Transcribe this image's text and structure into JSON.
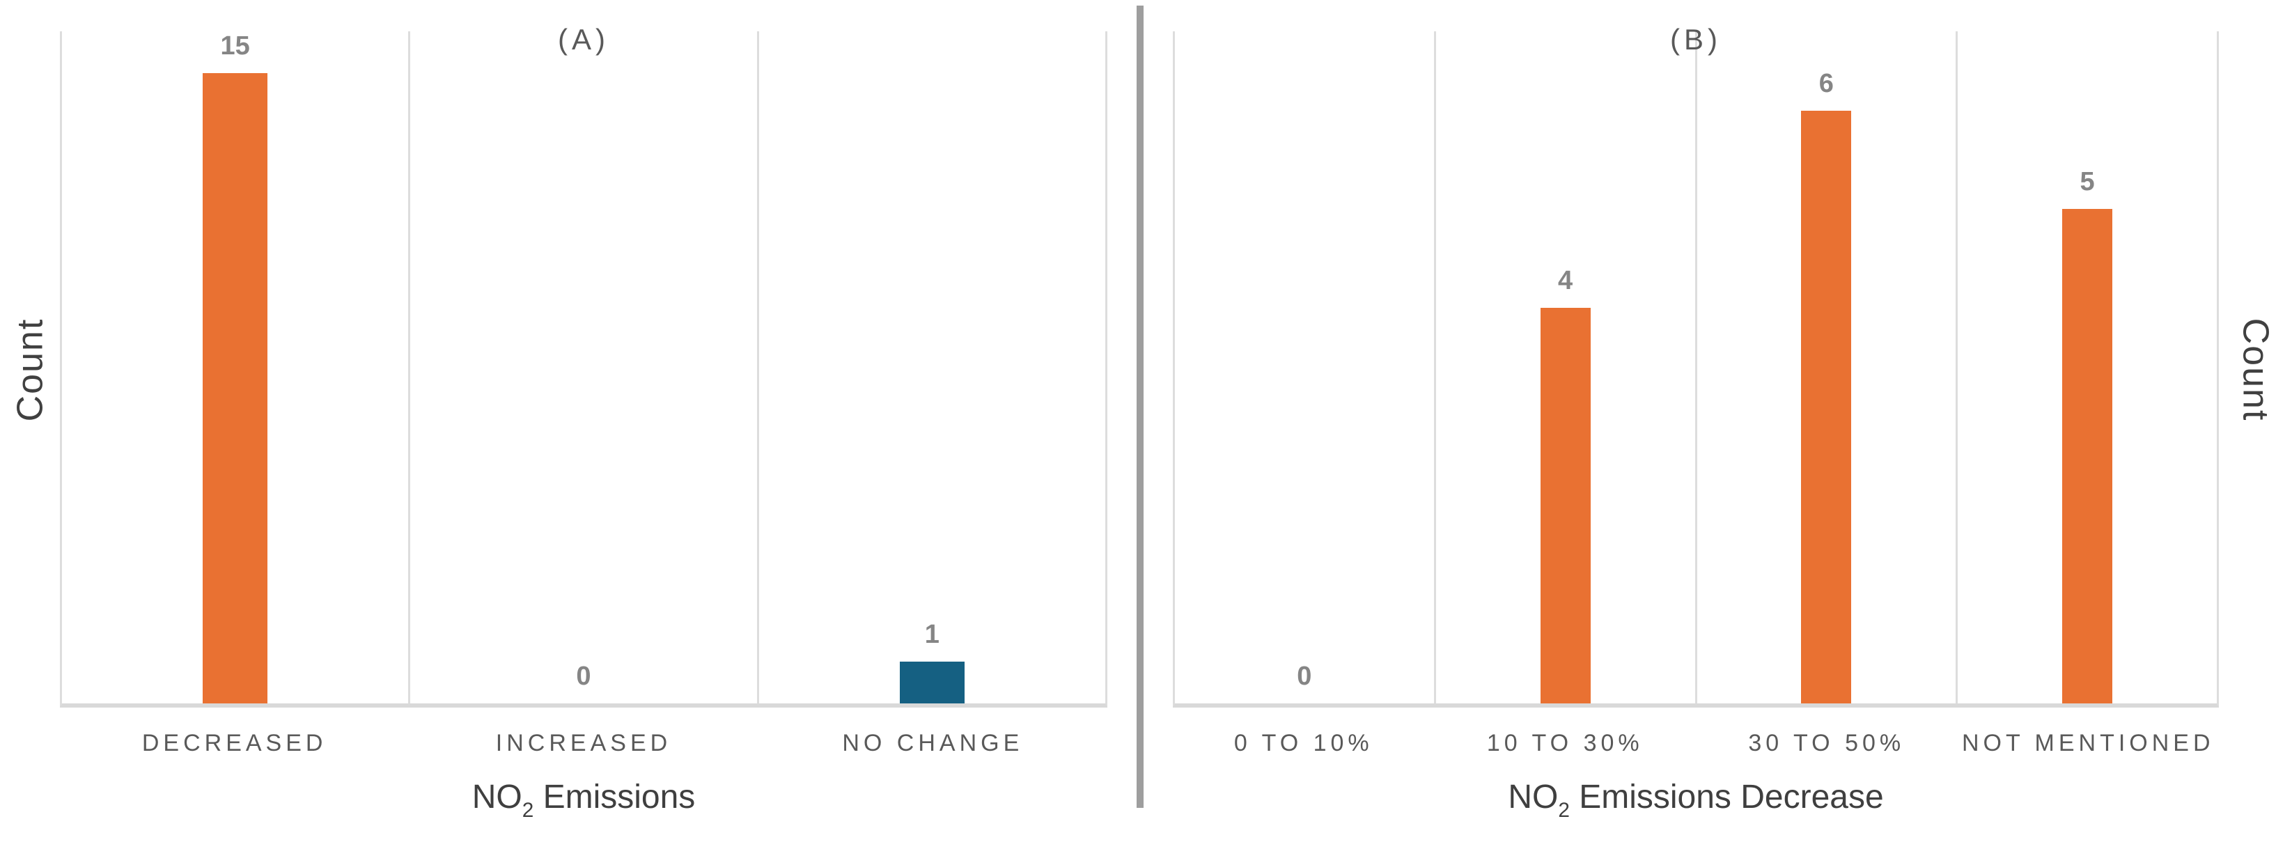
{
  "figure": {
    "background": "#FFFFFF"
  },
  "colors": {
    "orange": "#E97132",
    "teal": "#156082",
    "cell_line": "#DDDDDD",
    "baseline": "#D9D9D9",
    "divider": "#9E9E9E",
    "value_label": "#858585",
    "category_label": "#595959",
    "panel_title": "#595959",
    "axis_title": "#3F3F3F",
    "ylabel": "#404040"
  },
  "chart_data": [
    {
      "type": "bar",
      "panel_label": "(A)",
      "categories": [
        "DECREASED",
        "INCREASED",
        "NO CHANGE"
      ],
      "values": [
        15,
        0,
        1
      ],
      "value_labels": [
        "15",
        "0",
        "1"
      ],
      "bar_colors": [
        "#E97132",
        "#E97132",
        "#156082"
      ],
      "xlabel": "NO2 Emissions",
      "xlabel_parts": {
        "prefix": "NO",
        "sub": "2",
        "suffix": " Emissions"
      },
      "ylabel": "Count",
      "ylim": [
        0,
        16
      ],
      "grid": false,
      "legend": "none",
      "value_labels_position": "above-bar"
    },
    {
      "type": "bar",
      "panel_label": "(B)",
      "categories": [
        "0 TO 10%",
        "10 TO 30%",
        "30 TO 50%",
        "NOT MENTIONED"
      ],
      "values": [
        0,
        4,
        6,
        5
      ],
      "value_labels": [
        "0",
        "4",
        "6",
        "5"
      ],
      "bar_colors": [
        "#E97132",
        "#E97132",
        "#E97132",
        "#E97132"
      ],
      "xlabel": "NO2 Emissions Decrease",
      "xlabel_parts": {
        "prefix": "NO",
        "sub": "2",
        "suffix": " Emissions Decrease"
      },
      "ylabel": "Count",
      "ylim": [
        0,
        6.8
      ],
      "grid": false,
      "legend": "none",
      "value_labels_position": "above-bar"
    }
  ]
}
